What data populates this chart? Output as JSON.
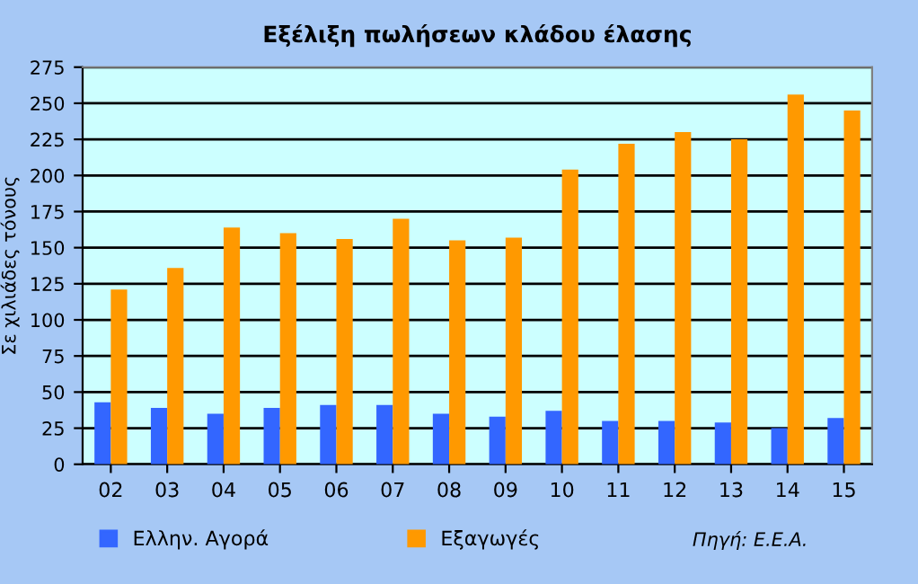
{
  "chart_data": {
    "type": "bar",
    "title": "Εξέλιξη πωλήσεων κλάδου έλασης",
    "ylabel": "Σε χιλιάδες τόνους",
    "categories": [
      "02",
      "03",
      "04",
      "05",
      "06",
      "07",
      "08",
      "09",
      "10",
      "11",
      "12",
      "13",
      "14",
      "15"
    ],
    "series": [
      {
        "name": "Ελλην. Αγορά",
        "color": "#3366ff",
        "values": [
          43,
          39,
          35,
          39,
          41,
          41,
          35,
          33,
          37,
          30,
          30,
          29,
          25,
          32
        ]
      },
      {
        "name": "Εξαγωγές",
        "color": "#ff9900",
        "values": [
          121,
          136,
          164,
          160,
          156,
          170,
          155,
          157,
          204,
          222,
          230,
          225,
          256,
          245
        ]
      }
    ],
    "ylim": [
      0,
      275
    ],
    "yticks": [
      0,
      25,
      50,
      75,
      100,
      125,
      150,
      175,
      200,
      225,
      250,
      275
    ],
    "grid": "y",
    "legend": "bottom",
    "annotations": [
      "Πηγή: Ε.Ε.Α."
    ]
  }
}
